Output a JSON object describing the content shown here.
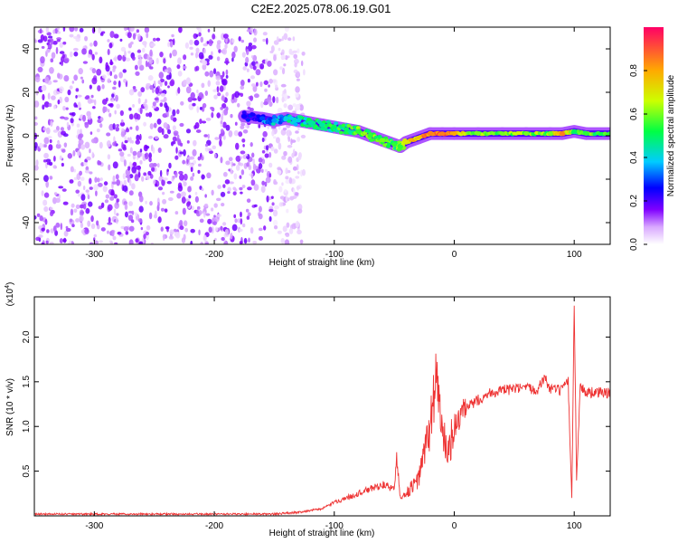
{
  "figure": {
    "title": "C2E2.2025.078.06.19.G01"
  },
  "chart_data": [
    {
      "type": "heatmap",
      "xlabel": "Height of straight line (km)",
      "ylabel": "Frequency (Hz)",
      "xlim": [
        -350,
        130
      ],
      "ylim": [
        -50,
        50
      ],
      "x_ticks": [
        -300,
        -200,
        -100,
        0,
        100
      ],
      "y_ticks": [
        -40,
        -20,
        0,
        20,
        40
      ],
      "colorbar": {
        "label": "Normalized spectral amplitude",
        "range": [
          0,
          1
        ],
        "ticks": [
          "0.0",
          "0.2",
          "0.4",
          "0.6",
          "0.8"
        ],
        "colors": [
          "#ffffff",
          "#cc88ff",
          "#7a00ff",
          "#0000ff",
          "#00ccff",
          "#00ff66",
          "#ffff00",
          "#ff8800",
          "#ff0000"
        ]
      },
      "signal_track": [
        {
          "x": -175,
          "f": 9,
          "a": 0.25
        },
        {
          "x": -160,
          "f": 8,
          "a": 0.3
        },
        {
          "x": -150,
          "f": 7,
          "a": 0.35
        },
        {
          "x": -140,
          "f": 8,
          "a": 0.4
        },
        {
          "x": -130,
          "f": 7,
          "a": 0.4
        },
        {
          "x": -120,
          "f": 6,
          "a": 0.45
        },
        {
          "x": -110,
          "f": 5,
          "a": 0.45
        },
        {
          "x": -100,
          "f": 4,
          "a": 0.5
        },
        {
          "x": -90,
          "f": 3,
          "a": 0.5
        },
        {
          "x": -80,
          "f": 2,
          "a": 0.55
        },
        {
          "x": -70,
          "f": 0,
          "a": 0.55
        },
        {
          "x": -60,
          "f": -2,
          "a": 0.6
        },
        {
          "x": -50,
          "f": -4,
          "a": 0.55
        },
        {
          "x": -45,
          "f": -5,
          "a": 0.55
        },
        {
          "x": -40,
          "f": -3,
          "a": 0.7
        },
        {
          "x": -30,
          "f": -1,
          "a": 0.75
        },
        {
          "x": -20,
          "f": 1,
          "a": 0.85
        },
        {
          "x": -10,
          "f": 1,
          "a": 0.85
        },
        {
          "x": 0,
          "f": 1,
          "a": 0.8
        },
        {
          "x": 20,
          "f": 1,
          "a": 0.6
        },
        {
          "x": 40,
          "f": 1,
          "a": 0.6
        },
        {
          "x": 60,
          "f": 1,
          "a": 0.6
        },
        {
          "x": 80,
          "f": 1,
          "a": 0.6
        },
        {
          "x": 90,
          "f": 1,
          "a": 0.85
        },
        {
          "x": 100,
          "f": 2,
          "a": 0.5
        },
        {
          "x": 110,
          "f": 1,
          "a": 0.55
        },
        {
          "x": 130,
          "f": 1,
          "a": 0.55
        }
      ],
      "noise_region_x": [
        -350,
        -150
      ],
      "noise_amplitude": 0.15
    },
    {
      "type": "line",
      "xlabel": "Height of straight line (km)",
      "ylabel": "SNR (10 * v/v)",
      "y_multiplier": "(x10",
      "y_multiplier_exp": "4",
      "y_multiplier_close": ")",
      "xlim": [
        -350,
        130
      ],
      "ylim": [
        0,
        2.45
      ],
      "x_ticks": [
        -300,
        -200,
        -100,
        0,
        100
      ],
      "y_ticks": [
        "0.5",
        "1.0",
        "1.5",
        "2.0"
      ],
      "line_color": "#ee3333",
      "series": [
        {
          "x": [
            -350,
            -300,
            -250,
            -200,
            -170,
            -150,
            -130,
            -110,
            -100,
            -90,
            -80,
            -70,
            -60,
            -50,
            -48,
            -45,
            -40,
            -30,
            -25,
            -20,
            -15,
            -10,
            -5,
            0,
            10,
            20,
            30,
            40,
            50,
            60,
            70,
            75,
            80,
            90,
            95,
            98,
            100,
            102,
            105,
            110,
            120,
            130
          ],
          "y": [
            0.02,
            0.02,
            0.02,
            0.02,
            0.02,
            0.02,
            0.04,
            0.08,
            0.15,
            0.2,
            0.25,
            0.3,
            0.35,
            0.3,
            0.65,
            0.2,
            0.25,
            0.4,
            0.7,
            1.0,
            1.6,
            0.9,
            0.7,
            1.0,
            1.2,
            1.3,
            1.38,
            1.4,
            1.42,
            1.42,
            1.42,
            1.55,
            1.42,
            1.4,
            1.5,
            0.2,
            2.4,
            0.4,
            1.45,
            1.38,
            1.38,
            1.37
          ]
        }
      ],
      "noise": 0.15
    }
  ]
}
